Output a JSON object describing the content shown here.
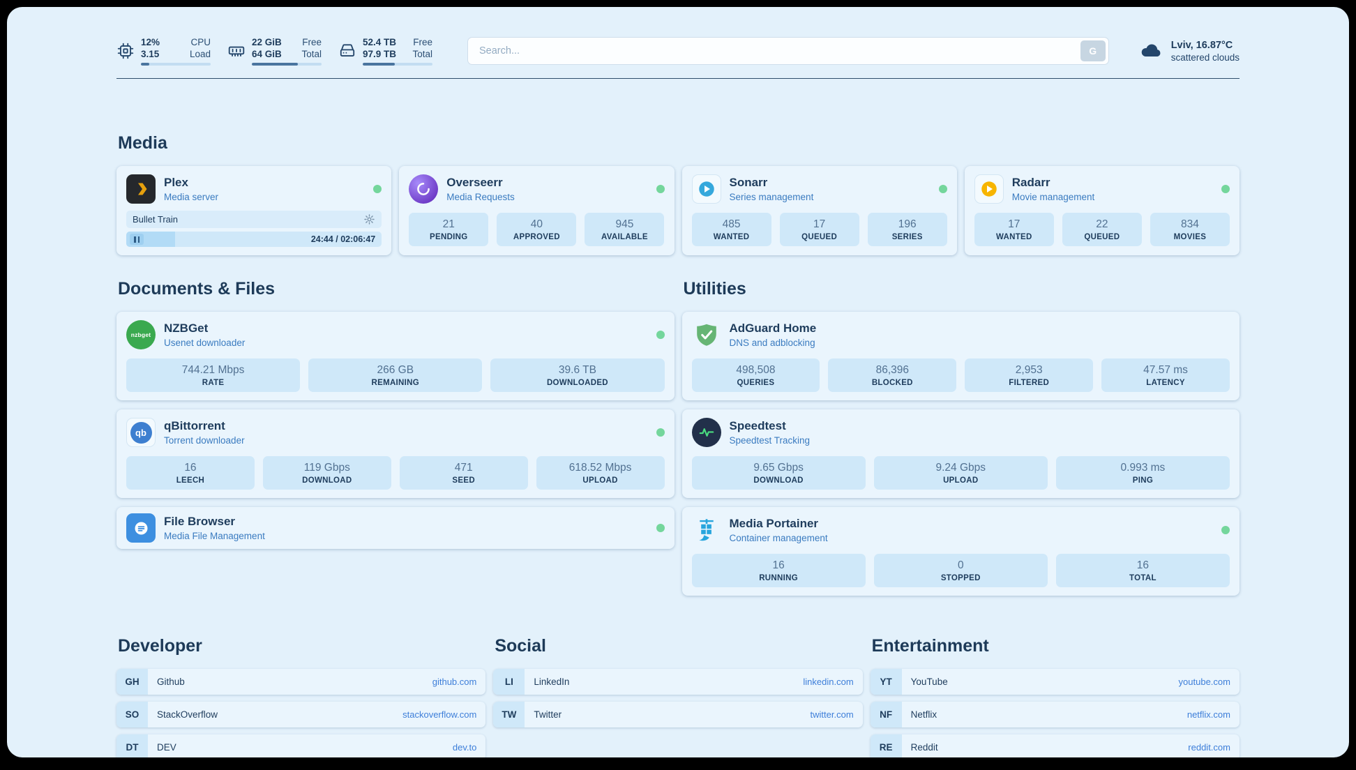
{
  "colors": {
    "page_background": "#e3f1fb",
    "frame": "#000000",
    "card_background": "#eaf5fd",
    "stat_box": "#cfe8f9",
    "text_primary": "#1e3c5c",
    "text_secondary": "#3a7bc0",
    "status_online": "#74d69c",
    "link": "#3d7ed9"
  },
  "topbar": {
    "cpu": {
      "icon": "cpu-icon",
      "value1": "12%",
      "label1": "CPU",
      "value2": "3.15",
      "label2": "Load",
      "percent": 12
    },
    "memory": {
      "icon": "memory-icon",
      "value1": "22 GiB",
      "label1": "Free",
      "value2": "64 GiB",
      "label2": "Total",
      "percent": 66
    },
    "disk": {
      "icon": "disk-icon",
      "value1": "52.4 TB",
      "label1": "Free",
      "value2": "97.9 TB",
      "label2": "Total",
      "percent": 46
    },
    "search": {
      "placeholder": "Search...",
      "provider_button": "G"
    },
    "weather": {
      "icon": "cloud-icon",
      "location": "Lviv, 16.87°C",
      "condition": "scattered clouds"
    }
  },
  "section_titles": {
    "media": "Media",
    "documents": "Documents & Files",
    "utilities": "Utilities"
  },
  "services": {
    "plex": {
      "icon": "plex-icon",
      "name": "Plex",
      "desc": "Media server",
      "status": "online",
      "now_playing": "Bullet Train",
      "time": "24:44 / 02:06:47",
      "progress_percent": 19
    },
    "overseerr": {
      "icon": "overseerr-icon",
      "name": "Overseerr",
      "desc": "Media Requests",
      "status": "online",
      "stats": [
        {
          "value": "21",
          "label": "PENDING"
        },
        {
          "value": "40",
          "label": "APPROVED"
        },
        {
          "value": "945",
          "label": "AVAILABLE"
        }
      ]
    },
    "sonarr": {
      "icon": "sonarr-icon",
      "name": "Sonarr",
      "desc": "Series management",
      "status": "online",
      "stats": [
        {
          "value": "485",
          "label": "WANTED"
        },
        {
          "value": "17",
          "label": "QUEUED"
        },
        {
          "value": "196",
          "label": "SERIES"
        }
      ]
    },
    "radarr": {
      "icon": "radarr-icon",
      "name": "Radarr",
      "desc": "Movie management",
      "status": "online",
      "stats": [
        {
          "value": "17",
          "label": "WANTED"
        },
        {
          "value": "22",
          "label": "QUEUED"
        },
        {
          "value": "834",
          "label": "MOVIES"
        }
      ]
    },
    "nzbget": {
      "icon": "nzbget-icon",
      "icon_text": "nzbget",
      "name": "NZBGet",
      "desc": "Usenet downloader",
      "status": "online",
      "stats": [
        {
          "value": "744.21 Mbps",
          "label": "RATE"
        },
        {
          "value": "266 GB",
          "label": "REMAINING"
        },
        {
          "value": "39.6 TB",
          "label": "DOWNLOADED"
        }
      ]
    },
    "qbittorrent": {
      "icon": "qbittorrent-icon",
      "icon_text": "qb",
      "name": "qBittorrent",
      "desc": "Torrent downloader",
      "status": "online",
      "stats": [
        {
          "value": "16",
          "label": "LEECH"
        },
        {
          "value": "119 Gbps",
          "label": "DOWNLOAD"
        },
        {
          "value": "471",
          "label": "SEED"
        },
        {
          "value": "618.52 Mbps",
          "label": "UPLOAD"
        }
      ]
    },
    "filebrowser": {
      "icon": "filebrowser-icon",
      "name": "File Browser",
      "desc": "Media File Management",
      "status": "online"
    },
    "adguard": {
      "icon": "adguard-icon",
      "name": "AdGuard Home",
      "desc": "DNS and adblocking",
      "stats": [
        {
          "value": "498,508",
          "label": "QUERIES"
        },
        {
          "value": "86,396",
          "label": "BLOCKED"
        },
        {
          "value": "2,953",
          "label": "FILTERED"
        },
        {
          "value": "47.57 ms",
          "label": "LATENCY"
        }
      ]
    },
    "speedtest": {
      "icon": "speedtest-icon",
      "name": "Speedtest",
      "desc": "Speedtest Tracking",
      "stats": [
        {
          "value": "9.65 Gbps",
          "label": "DOWNLOAD"
        },
        {
          "value": "9.24 Gbps",
          "label": "UPLOAD"
        },
        {
          "value": "0.993 ms",
          "label": "PING"
        }
      ]
    },
    "portainer": {
      "icon": "portainer-icon",
      "name": "Media Portainer",
      "desc": "Container management",
      "status": "online",
      "stats": [
        {
          "value": "16",
          "label": "RUNNING"
        },
        {
          "value": "0",
          "label": "STOPPED"
        },
        {
          "value": "16",
          "label": "TOTAL"
        }
      ]
    }
  },
  "bookmarks": {
    "developer": {
      "title": "Developer",
      "items": [
        {
          "abbr": "GH",
          "name": "Github",
          "url": "github.com"
        },
        {
          "abbr": "SO",
          "name": "StackOverflow",
          "url": "stackoverflow.com"
        },
        {
          "abbr": "DT",
          "name": "DEV",
          "url": "dev.to"
        }
      ]
    },
    "social": {
      "title": "Social",
      "items": [
        {
          "abbr": "LI",
          "name": "LinkedIn",
          "url": "linkedin.com"
        },
        {
          "abbr": "TW",
          "name": "Twitter",
          "url": "twitter.com"
        }
      ]
    },
    "entertainment": {
      "title": "Entertainment",
      "items": [
        {
          "abbr": "YT",
          "name": "YouTube",
          "url": "youtube.com"
        },
        {
          "abbr": "NF",
          "name": "Netflix",
          "url": "netflix.com"
        },
        {
          "abbr": "RE",
          "name": "Reddit",
          "url": "reddit.com"
        }
      ]
    }
  }
}
